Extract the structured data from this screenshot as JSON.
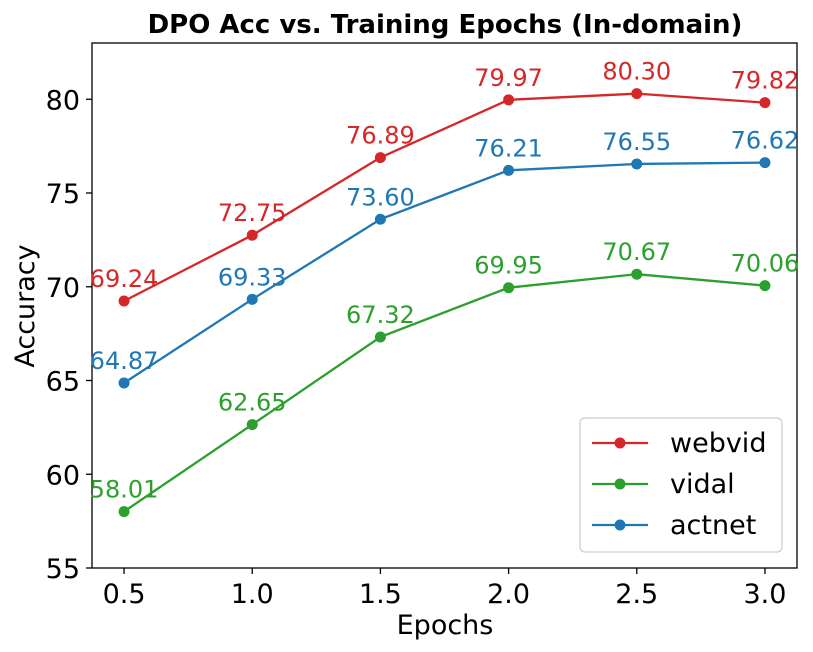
{
  "chart_data": {
    "type": "line",
    "title": "DPO Acc vs. Training Epochs (In-domain)",
    "xlabel": "Epochs",
    "ylabel": "Accuracy",
    "x": [
      0.5,
      1.0,
      1.5,
      2.0,
      2.5,
      3.0
    ],
    "x_tick_labels": [
      "0.5",
      "1.0",
      "1.5",
      "2.0",
      "2.5",
      "3.0"
    ],
    "y_ticks": [
      55,
      60,
      65,
      70,
      75,
      80
    ],
    "xlim": [
      0.375,
      3.125
    ],
    "ylim": [
      55,
      83
    ],
    "grid": false,
    "legend_position": "lower-right",
    "series": [
      {
        "name": "webvid",
        "color": "#d62728",
        "values": [
          69.24,
          72.75,
          76.89,
          79.97,
          80.3,
          79.82
        ],
        "labels": [
          "69.24",
          "72.75",
          "76.89",
          "79.97",
          "80.30",
          "79.82"
        ]
      },
      {
        "name": "vidal",
        "color": "#2ca02c",
        "values": [
          58.01,
          62.65,
          67.32,
          69.95,
          70.67,
          70.06
        ],
        "labels": [
          "58.01",
          "62.65",
          "67.32",
          "69.95",
          "70.67",
          "70.06"
        ]
      },
      {
        "name": "actnet",
        "color": "#1f77b4",
        "values": [
          64.87,
          69.33,
          73.6,
          76.21,
          76.55,
          76.62
        ],
        "labels": [
          "64.87",
          "69.33",
          "73.60",
          "76.21",
          "76.55",
          "76.62"
        ]
      }
    ]
  }
}
